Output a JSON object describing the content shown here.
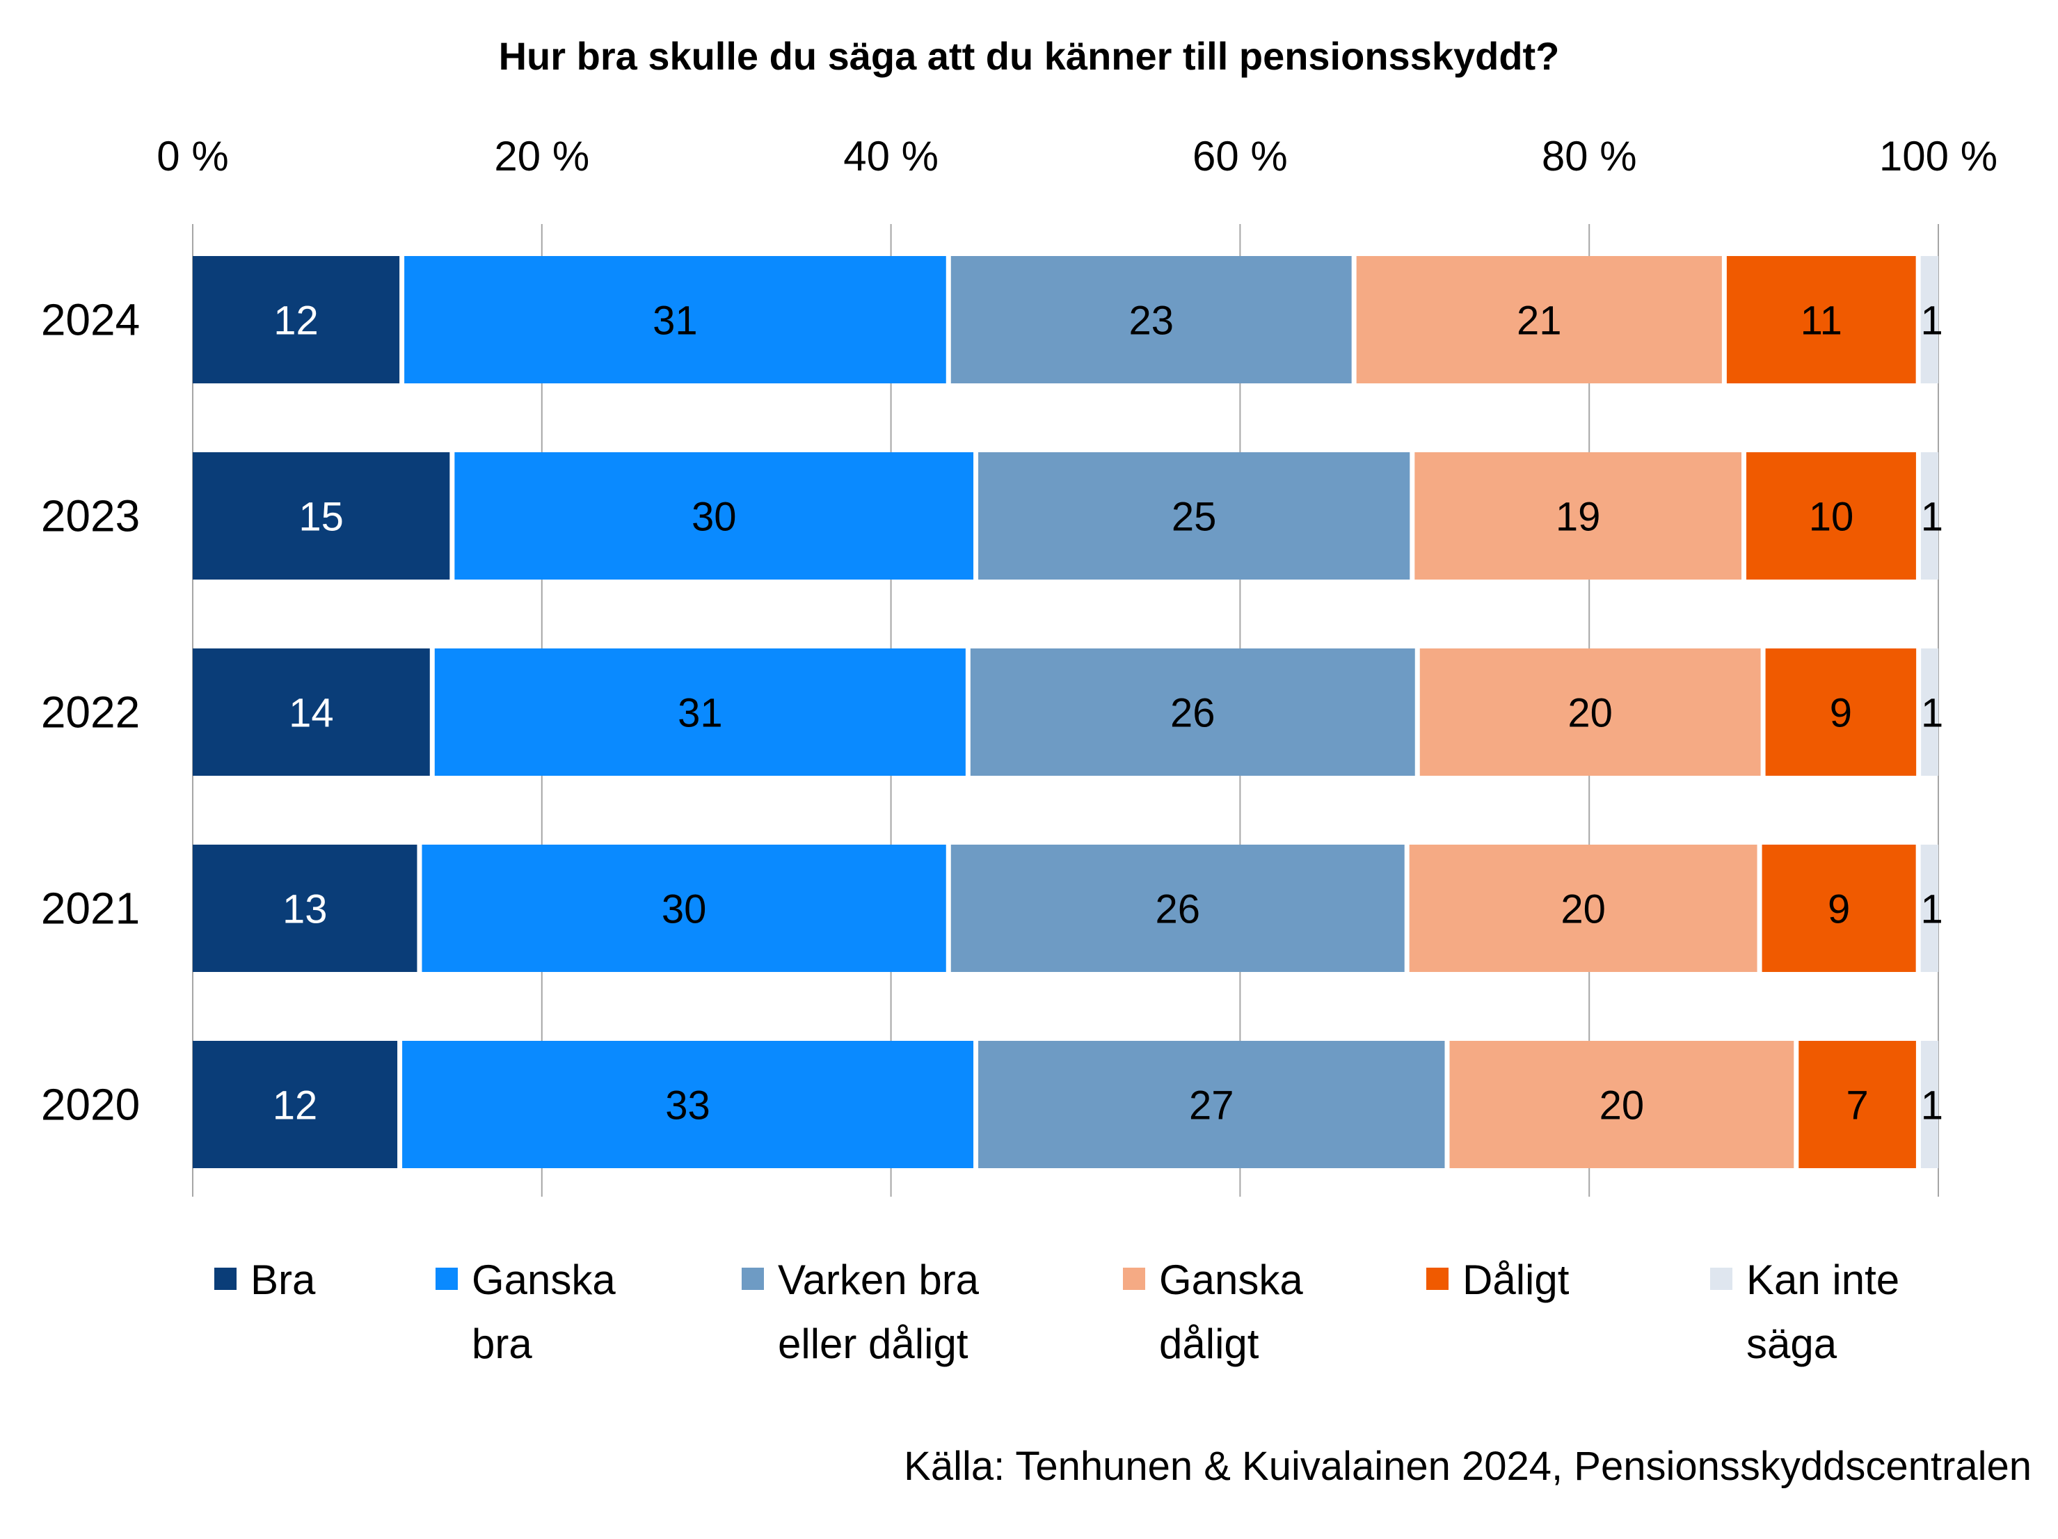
{
  "chart_data": {
    "type": "bar",
    "orientation": "horizontal",
    "stacked": "percent",
    "title": "Hur bra skulle du säga att du känner till pensionsskyddt?",
    "xlim": [
      0,
      100
    ],
    "x_ticks": [
      "0 %",
      "20 %",
      "40 %",
      "60 %",
      "80 %",
      "100 %"
    ],
    "x_tick_values": [
      0,
      20,
      40,
      60,
      80,
      100
    ],
    "x_axis_position": "top",
    "grid": "vertical",
    "legend_position": "bottom",
    "categories": [
      "2024",
      "2023",
      "2022",
      "2021",
      "2020"
    ],
    "series": [
      {
        "name": "Bra",
        "legend_lines": [
          "Bra"
        ],
        "color": "#0a3d78",
        "label_color": "#ffffff",
        "values": [
          12,
          15,
          14,
          13,
          12
        ]
      },
      {
        "name": "Ganska bra",
        "legend_lines": [
          "Ganska",
          "bra"
        ],
        "color": "#0a8aff",
        "label_color": "#000000",
        "values": [
          31,
          30,
          31,
          30,
          33
        ]
      },
      {
        "name": "Varken bra eller dåligt",
        "legend_lines": [
          "Varken bra",
          "eller dåligt"
        ],
        "color": "#6e9bc4",
        "label_color": "#000000",
        "values": [
          23,
          25,
          26,
          26,
          27
        ]
      },
      {
        "name": "Ganska dåligt",
        "legend_lines": [
          "Ganska",
          "dåligt"
        ],
        "color": "#f5aa84",
        "label_color": "#000000",
        "values": [
          21,
          19,
          20,
          20,
          20
        ]
      },
      {
        "name": "Dåligt",
        "legend_lines": [
          "Dåligt"
        ],
        "color": "#f05a00",
        "label_color": "#000000",
        "values": [
          11,
          10,
          9,
          9,
          7
        ]
      },
      {
        "name": "Kan inte säga",
        "legend_lines": [
          "Kan inte",
          "säga"
        ],
        "color": "#dfe6ef",
        "label_color": "#000000",
        "values": [
          1,
          1,
          1,
          1,
          1
        ]
      }
    ]
  },
  "source": "Källa: Tenhunen & Kuivalainen 2024, Pensionsskyddscentralen"
}
